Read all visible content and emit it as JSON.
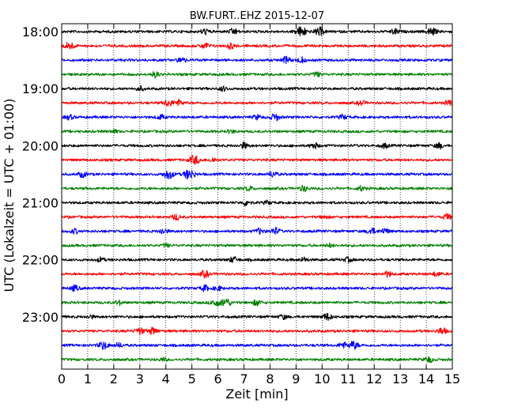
{
  "chart_data": {
    "type": "line",
    "title": "BW.FURT..EHZ 2015-12-07",
    "xlabel": "Zeit  [min]",
    "ylabel": "UTC (Lokalzeit = UTC + 01:00)",
    "xlim": [
      0,
      15
    ],
    "x_ticks": [
      "0",
      "1",
      "2",
      "3",
      "4",
      "5",
      "6",
      "7",
      "8",
      "9",
      "10",
      "11",
      "12",
      "13",
      "14",
      "15"
    ],
    "y_tick_labels": [
      "18:00",
      "19:00",
      "20:00",
      "21:00",
      "22:00",
      "23:00"
    ],
    "trace_interval_min": 15,
    "grid": "vertical dotted lines at each minute",
    "trace_colors": [
      "#000000",
      "#ff0000",
      "#0000ff",
      "#008000"
    ],
    "traces": [
      {
        "start": "18:00",
        "events": [
          [
            5.5,
            0.5
          ],
          [
            6.6,
            0.5
          ],
          [
            9.2,
            0.9
          ],
          [
            9.9,
            0.7
          ],
          [
            12.8,
            0.5
          ],
          [
            14.2,
            0.7
          ]
        ]
      },
      {
        "start": "18:15",
        "events": [
          [
            0.3,
            0.7
          ],
          [
            5.5,
            0.5
          ],
          [
            6.5,
            0.5
          ]
        ]
      },
      {
        "start": "18:30",
        "events": [
          [
            4.6,
            0.5
          ],
          [
            8.6,
            0.6
          ],
          [
            9.2,
            0.5
          ]
        ]
      },
      {
        "start": "18:45",
        "events": [
          [
            3.6,
            0.5
          ],
          [
            9.8,
            0.4
          ]
        ]
      },
      {
        "start": "19:00",
        "events": [
          [
            3.0,
            0.4
          ],
          [
            6.2,
            0.4
          ]
        ]
      },
      {
        "start": "19:15",
        "events": [
          [
            4.1,
            0.6
          ],
          [
            4.5,
            0.5
          ],
          [
            11.5,
            0.4
          ],
          [
            14.9,
            0.5
          ]
        ]
      },
      {
        "start": "19:30",
        "events": [
          [
            0.3,
            0.4
          ],
          [
            3.8,
            0.4
          ],
          [
            7.5,
            0.4
          ],
          [
            8.2,
            0.6
          ],
          [
            10.8,
            0.4
          ]
        ]
      },
      {
        "start": "19:45",
        "events": [
          [
            2.0,
            0.3
          ],
          [
            6.5,
            0.3
          ]
        ]
      },
      {
        "start": "20:00",
        "events": [
          [
            7.0,
            0.5
          ],
          [
            9.7,
            0.5
          ],
          [
            12.4,
            0.4
          ],
          [
            14.5,
            0.5
          ]
        ]
      },
      {
        "start": "20:15",
        "events": [
          [
            5.1,
            0.8
          ],
          [
            5.8,
            0.4
          ]
        ]
      },
      {
        "start": "20:30",
        "events": [
          [
            0.8,
            0.5
          ],
          [
            4.1,
            0.8
          ],
          [
            4.9,
            0.9
          ],
          [
            8.1,
            0.5
          ]
        ]
      },
      {
        "start": "20:45",
        "events": [
          [
            7.2,
            0.4
          ],
          [
            9.3,
            0.5
          ],
          [
            11.5,
            0.4
          ]
        ]
      },
      {
        "start": "21:00",
        "events": [
          [
            7.1,
            0.5
          ],
          [
            7.9,
            0.3
          ]
        ]
      },
      {
        "start": "21:15",
        "events": [
          [
            4.4,
            0.5
          ],
          [
            10.1,
            0.3
          ],
          [
            14.8,
            0.5
          ]
        ]
      },
      {
        "start": "21:30",
        "events": [
          [
            0.5,
            0.4
          ],
          [
            3.9,
            0.5
          ],
          [
            7.6,
            0.5
          ],
          [
            8.2,
            0.6
          ],
          [
            11.9,
            0.6
          ],
          [
            12.4,
            0.5
          ]
        ]
      },
      {
        "start": "21:45",
        "events": [
          [
            4.0,
            0.3
          ],
          [
            10.3,
            0.3
          ]
        ]
      },
      {
        "start": "22:00",
        "events": [
          [
            1.5,
            0.4
          ],
          [
            6.6,
            0.5
          ],
          [
            9.3,
            0.4
          ],
          [
            11.0,
            0.4
          ]
        ]
      },
      {
        "start": "22:15",
        "events": [
          [
            5.5,
            0.6
          ],
          [
            12.5,
            0.5
          ],
          [
            14.4,
            0.4
          ]
        ]
      },
      {
        "start": "22:30",
        "events": [
          [
            0.5,
            0.5
          ],
          [
            5.5,
            0.5
          ],
          [
            6.0,
            0.4
          ]
        ]
      },
      {
        "start": "22:45",
        "events": [
          [
            2.2,
            0.4
          ],
          [
            5.9,
            0.6
          ],
          [
            6.3,
            0.8
          ],
          [
            7.5,
            0.5
          ]
        ]
      },
      {
        "start": "23:00",
        "events": [
          [
            1.1,
            0.3
          ],
          [
            8.5,
            0.4
          ],
          [
            10.2,
            0.6
          ]
        ]
      },
      {
        "start": "23:15",
        "events": [
          [
            3.0,
            0.6
          ],
          [
            3.5,
            0.6
          ],
          [
            14.6,
            0.6
          ]
        ]
      },
      {
        "start": "23:30",
        "events": [
          [
            1.6,
            0.7
          ],
          [
            2.2,
            0.4
          ],
          [
            10.8,
            0.5
          ],
          [
            11.2,
            0.7
          ]
        ]
      },
      {
        "start": "23:45",
        "events": [
          [
            3.9,
            0.3
          ],
          [
            14.1,
            0.5
          ]
        ]
      }
    ]
  }
}
